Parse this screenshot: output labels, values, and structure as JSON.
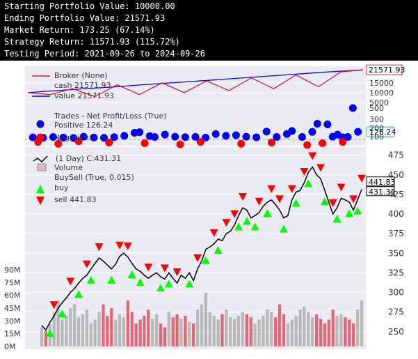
{
  "console": {
    "lines": [
      "Starting Portfolio Value: 10000.00",
      "Ending Portfolio Value: 21571.93",
      "Market Return: 173.25 (67.14%)",
      "Strategy Return: 11571.93 (115.72%)",
      "Testing Period: 2021-09-26 to 2024-09-26"
    ]
  },
  "colors": {
    "console_bg": "#000000",
    "console_text": "#ffffff",
    "plot_bg": "#eaeaf2",
    "cash_line": "#dc143c",
    "value_line": "#0000ff",
    "trade_positive": "#0000ff",
    "trade_negative": "#ff0000",
    "price_line": "#000000",
    "buy_marker": "#00ff00",
    "sell_marker": "#ff0000",
    "volume_up": "#b0b0b0",
    "volume_down": "#e05060"
  },
  "chart_data": [
    {
      "type": "line",
      "panel": "broker",
      "legend": {
        "title": "Broker (None)",
        "items": [
          "cash 21571.93",
          "value 21571.93"
        ]
      },
      "last_value_label": "21571.93",
      "ticks": [
        "15000",
        "10000",
        "5000"
      ],
      "ylim": [
        5000,
        22000
      ],
      "series": [
        {
          "name": "value",
          "values": [
            10000,
            10800,
            11600,
            12300,
            13000,
            13900,
            14700,
            15400,
            16200,
            17000,
            17800,
            18600,
            19400,
            20200,
            20900,
            21571.93
          ]
        },
        {
          "name": "cash",
          "values": [
            10000,
            9000,
            12000,
            8000,
            14000,
            9000,
            15000,
            10000,
            16000,
            11000,
            17500,
            12000,
            19000,
            13000,
            20500,
            21571.93
          ]
        }
      ]
    },
    {
      "type": "scatter",
      "panel": "trades",
      "legend": {
        "title": "Trades - Net Profit/Loss (True)",
        "items": [
          "Positive 126.24",
          "Negative"
        ]
      },
      "last_value_label": "126.24",
      "ticks": [
        "500",
        "300",
        "200",
        "100"
      ],
      "positive": [
        [
          1,
          35
        ],
        [
          3,
          28
        ],
        [
          5,
          40
        ],
        [
          7,
          30
        ],
        [
          9,
          25
        ],
        [
          11,
          45
        ],
        [
          13,
          32
        ],
        [
          15,
          28
        ],
        [
          17,
          38
        ],
        [
          19,
          60
        ],
        [
          21,
          110
        ],
        [
          22,
          120
        ],
        [
          24,
          55
        ],
        [
          25,
          40
        ],
        [
          27,
          80
        ],
        [
          29,
          45
        ],
        [
          31,
          38
        ],
        [
          33,
          42
        ],
        [
          35,
          30
        ],
        [
          37,
          90
        ],
        [
          39,
          60
        ],
        [
          41,
          70
        ],
        [
          43,
          45
        ],
        [
          45,
          35
        ],
        [
          47,
          130
        ],
        [
          49,
          40
        ],
        [
          51,
          90
        ],
        [
          52,
          140
        ],
        [
          54,
          40
        ],
        [
          56,
          125
        ],
        [
          57,
          260
        ],
        [
          59,
          250
        ],
        [
          60,
          45
        ],
        [
          61,
          80
        ],
        [
          62,
          35
        ],
        [
          63,
          40
        ],
        [
          64,
          520
        ],
        [
          65,
          126.24
        ]
      ],
      "negative": [
        [
          2,
          -20
        ],
        [
          6,
          -35
        ],
        [
          10,
          -15
        ],
        [
          16,
          -25
        ],
        [
          23,
          -30
        ],
        [
          30,
          -40
        ],
        [
          34,
          -20
        ],
        [
          42,
          -35
        ],
        [
          48,
          -25
        ],
        [
          55,
          -45
        ],
        [
          58,
          -30
        ],
        [
          62,
          -20
        ]
      ]
    },
    {
      "type": "line",
      "panel": "price",
      "legend": {
        "items": [
          "(1 Day) C:431.31",
          "Volume",
          "BuySell (True, 0.015)",
          "buy",
          "sell 441.83"
        ]
      },
      "price_last_label": "431.31",
      "sell_last_label": "441.83",
      "y_ticks": [
        "475",
        "450",
        "425",
        "400",
        "375",
        "350",
        "325",
        "300",
        "275",
        "250"
      ],
      "ylim": [
        240,
        480
      ],
      "volume_ticks": [
        "90M",
        "75M",
        "60M",
        "45M",
        "30M",
        "15M",
        "0M"
      ],
      "volume_max": 100,
      "close": [
        258,
        252,
        262,
        270,
        280,
        287,
        293,
        300,
        305,
        312,
        318,
        322,
        330,
        337,
        344,
        340,
        335,
        330,
        336,
        346,
        350,
        345,
        337,
        330,
        327,
        322,
        318,
        322,
        325,
        320,
        317,
        325,
        318,
        312,
        322,
        318,
        325,
        315,
        330,
        340,
        355,
        358,
        362,
        368,
        366,
        375,
        378,
        386,
        398,
        408,
        405,
        395,
        398,
        402,
        410,
        415,
        418,
        412,
        405,
        395,
        398,
        418,
        428,
        430,
        440,
        453,
        460,
        450,
        445,
        430,
        415,
        400,
        408,
        420,
        418,
        415,
        405,
        418,
        431.31
      ],
      "volume": [
        25,
        20,
        30,
        45,
        60,
        35,
        40,
        50,
        55,
        38,
        42,
        48,
        30,
        35,
        45,
        55,
        40,
        50,
        35,
        42,
        38,
        60,
        45,
        30,
        35,
        40,
        48,
        36,
        42,
        30,
        25,
        45,
        38,
        42,
        36,
        40,
        32,
        30,
        48,
        55,
        70,
        45,
        40,
        35,
        42,
        48,
        38,
        36,
        40,
        45,
        42,
        38,
        30,
        35,
        40,
        48,
        45,
        38,
        55,
        42,
        30,
        35,
        40,
        48,
        52,
        45,
        38,
        42,
        36,
        30,
        35,
        48,
        40,
        42,
        38,
        35,
        30,
        48,
        60
      ],
      "buy_x": [
        2,
        5,
        9,
        12,
        17,
        22,
        24,
        29,
        31,
        36,
        40,
        43,
        48,
        50,
        52,
        55,
        59,
        62,
        65,
        69,
        72,
        75,
        77
      ],
      "sell_x": [
        3,
        7,
        11,
        14,
        19,
        21,
        26,
        30,
        33,
        38,
        42,
        45,
        47,
        49,
        53,
        56,
        58,
        61,
        64,
        66,
        68,
        71,
        73,
        76,
        78
      ]
    }
  ]
}
